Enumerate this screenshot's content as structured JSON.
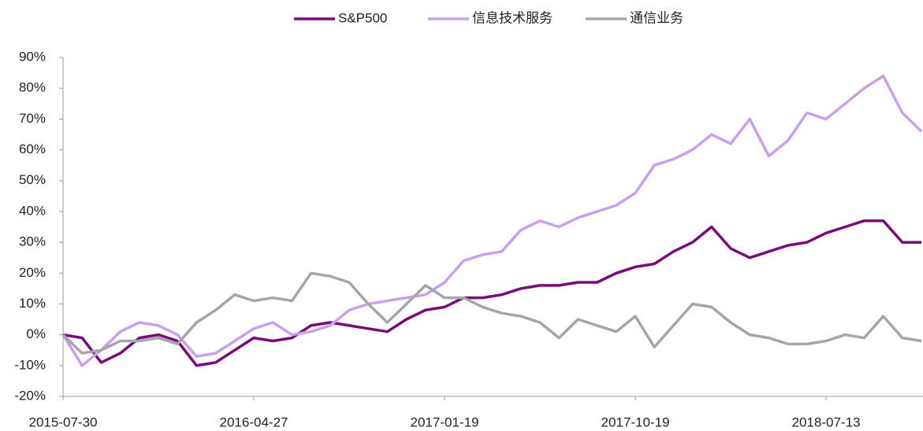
{
  "chart_data": {
    "type": "line",
    "categories": [
      "2015-07-30",
      null,
      null,
      null,
      null,
      null,
      null,
      null,
      null,
      null,
      "2016-04-27",
      null,
      null,
      null,
      null,
      null,
      null,
      null,
      null,
      null,
      "2017-01-19",
      null,
      null,
      null,
      null,
      null,
      null,
      null,
      null,
      null,
      "2017-10-19",
      null,
      null,
      null,
      null,
      null,
      null,
      null,
      null,
      null,
      "2018-07-13",
      null,
      null,
      null,
      null,
      null
    ],
    "series": [
      {
        "name": "S&P500",
        "color": "#7b0a7b",
        "values": [
          0,
          -1,
          -9,
          -6,
          -1,
          0,
          -2,
          -10,
          -9,
          -5,
          -1,
          -2,
          -1,
          3,
          4,
          3,
          2,
          1,
          5,
          8,
          9,
          12,
          12,
          13,
          15,
          16,
          16,
          17,
          17,
          20,
          22,
          23,
          27,
          30,
          35,
          28,
          25,
          27,
          29,
          30,
          33,
          35,
          37,
          37,
          30,
          30
        ]
      },
      {
        "name": "信息技术服务",
        "color": "#c9a0f0",
        "values": [
          0,
          -10,
          -5,
          1,
          4,
          3,
          0,
          -7,
          -6,
          -2,
          2,
          4,
          0,
          1,
          3,
          8,
          10,
          11,
          12,
          13,
          17,
          24,
          26,
          27,
          34,
          37,
          35,
          38,
          40,
          42,
          46,
          55,
          57,
          60,
          65,
          62,
          70,
          58,
          63,
          72,
          70,
          75,
          80,
          84,
          72,
          66
        ]
      },
      {
        "name": "通信业务",
        "color": "#a6a6a6",
        "values": [
          0,
          -6,
          -5,
          -2,
          -2,
          -1,
          -3,
          4,
          8,
          13,
          11,
          12,
          11,
          20,
          19,
          17,
          10,
          4,
          10,
          16,
          12,
          12,
          9,
          7,
          6,
          4,
          -1,
          5,
          3,
          1,
          6,
          -4,
          3,
          10,
          9,
          4,
          0,
          -1,
          -3,
          -3,
          -2,
          0,
          -1,
          6,
          -1,
          -2
        ]
      }
    ],
    "ylim": [
      -20,
      90
    ],
    "yticks": [
      {
        "value": -20,
        "label": "-20%"
      },
      {
        "value": -10,
        "label": "-10%"
      },
      {
        "value": 0,
        "label": "0%"
      },
      {
        "value": 10,
        "label": "10%"
      },
      {
        "value": 20,
        "label": "20%"
      },
      {
        "value": 30,
        "label": "30%"
      },
      {
        "value": 40,
        "label": "40%"
      },
      {
        "value": 50,
        "label": "50%"
      },
      {
        "value": 60,
        "label": "60%"
      },
      {
        "value": 70,
        "label": "70%"
      },
      {
        "value": 80,
        "label": "80%"
      },
      {
        "value": 90,
        "label": "90%"
      }
    ],
    "legend": "top",
    "grid": false
  }
}
